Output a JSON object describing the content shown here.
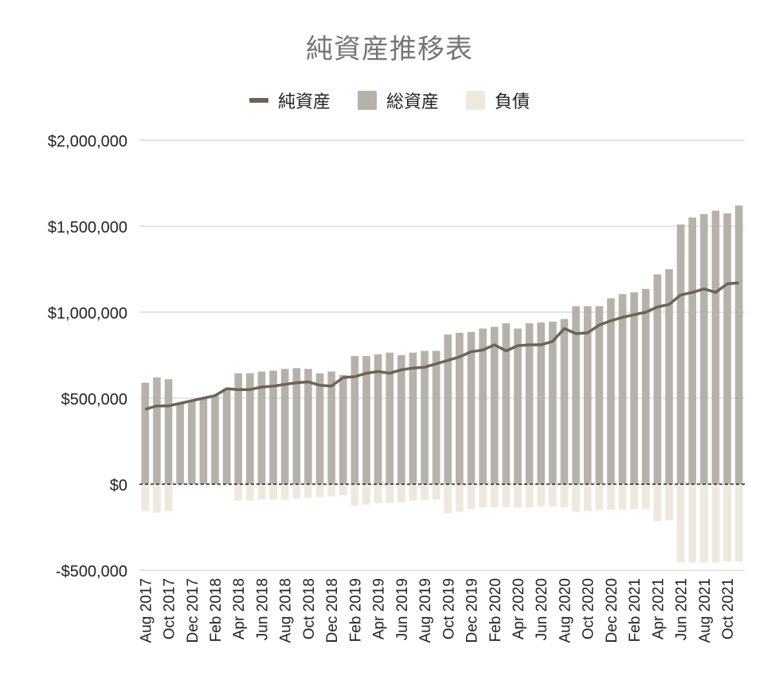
{
  "title": "純資産推移表",
  "legend": {
    "net": "純資産",
    "assets": "総資産",
    "liabilities": "負債"
  },
  "colors": {
    "net": "#6d6357",
    "assets": "#b6b2aa",
    "liabilities": "#efe8dc",
    "grid": "#cccccc",
    "zero": "#222222",
    "text": "#222222"
  },
  "chart_data": {
    "type": "bar",
    "title": "純資産推移表",
    "ylim": [
      -500000,
      2000000
    ],
    "yticks": [
      2000000,
      1500000,
      1000000,
      500000,
      0,
      -500000
    ],
    "ytick_labels": [
      "$2,000,000",
      "$1,500,000",
      "$1,000,000",
      "$500,000",
      "$0",
      "-$500,000"
    ],
    "grid": true,
    "legend_position": "top",
    "categories": [
      "Aug 2017",
      "Sep 2017",
      "Oct 2017",
      "Nov 2017",
      "Dec 2017",
      "Jan 2018",
      "Feb 2018",
      "Mar 2018",
      "Apr 2018",
      "May 2018",
      "Jun 2018",
      "Jul 2018",
      "Aug 2018",
      "Sep 2018",
      "Oct 2018",
      "Nov 2018",
      "Dec 2018",
      "Jan 2019",
      "Feb 2019",
      "Mar 2019",
      "Apr 2019",
      "May 2019",
      "Jun 2019",
      "Jul 2019",
      "Aug 2019",
      "Sep 2019",
      "Oct 2019",
      "Nov 2019",
      "Dec 2019",
      "Jan 2020",
      "Feb 2020",
      "Mar 2020",
      "Apr 2020",
      "May 2020",
      "Jun 2020",
      "Jul 2020",
      "Aug 2020",
      "Sep 2020",
      "Oct 2020",
      "Nov 2020",
      "Dec 2020",
      "Jan 2021",
      "Feb 2021",
      "Mar 2021",
      "Apr 2021",
      "May 2021",
      "Jun 2021",
      "Jul 2021",
      "Aug 2021",
      "Sep 2021",
      "Oct 2021",
      "Nov 2021"
    ],
    "x_tick_labels": [
      "Aug 2017",
      "",
      "Oct 2017",
      "",
      "Dec 2017",
      "",
      "Feb 2018",
      "",
      "Apr 2018",
      "",
      "Jun 2018",
      "",
      "Aug 2018",
      "",
      "Oct 2018",
      "",
      "Dec 2018",
      "",
      "Feb 2019",
      "",
      "Apr 2019",
      "",
      "Jun 2019",
      "",
      "Aug 2019",
      "",
      "Oct 2019",
      "",
      "Dec 2019",
      "",
      "Feb 2020",
      "",
      "Apr 2020",
      "",
      "Jun 2020",
      "",
      "Aug 2020",
      "",
      "Oct 2020",
      "",
      "Dec 2020",
      "",
      "Feb 2021",
      "",
      "Apr 2021",
      "",
      "Jun 2021",
      "",
      "Aug 2021",
      "",
      "Oct 2021",
      ""
    ],
    "series": [
      {
        "name": "純資産",
        "type": "line",
        "values": [
          435000,
          455000,
          455000,
          470000,
          485000,
          500000,
          515000,
          555000,
          550000,
          550000,
          565000,
          570000,
          580000,
          590000,
          595000,
          575000,
          570000,
          620000,
          625000,
          645000,
          655000,
          645000,
          665000,
          675000,
          680000,
          700000,
          720000,
          740000,
          770000,
          780000,
          810000,
          775000,
          805000,
          810000,
          810000,
          830000,
          905000,
          875000,
          880000,
          925000,
          950000,
          970000,
          985000,
          1000000,
          1030000,
          1045000,
          1100000,
          1115000,
          1135000,
          1115000,
          1165000,
          1170000
        ]
      },
      {
        "name": "総資産",
        "type": "bar",
        "values": [
          590000,
          620000,
          610000,
          470000,
          485000,
          500000,
          515000,
          555000,
          645000,
          645000,
          655000,
          660000,
          670000,
          675000,
          670000,
          645000,
          655000,
          635000,
          745000,
          745000,
          755000,
          765000,
          750000,
          765000,
          775000,
          775000,
          870000,
          880000,
          885000,
          905000,
          915000,
          935000,
          905000,
          935000,
          940000,
          945000,
          960000,
          1035000,
          1035000,
          1035000,
          1080000,
          1105000,
          1115000,
          1135000,
          1220000,
          1250000,
          1510000,
          1550000,
          1570000,
          1590000,
          1575000,
          1620000
        ]
      },
      {
        "name": "負債",
        "type": "bar",
        "values": [
          -155000,
          -165000,
          -155000,
          -2000,
          -2000,
          -2000,
          -2000,
          -2000,
          -95000,
          -95000,
          -90000,
          -90000,
          -90000,
          -85000,
          -80000,
          -75000,
          -70000,
          -65000,
          -125000,
          -120000,
          -110000,
          -110000,
          -105000,
          -95000,
          -95000,
          -90000,
          -170000,
          -160000,
          -145000,
          -135000,
          -135000,
          -135000,
          -135000,
          -135000,
          -130000,
          -130000,
          -135000,
          -160000,
          -155000,
          -150000,
          -150000,
          -150000,
          -145000,
          -145000,
          -215000,
          -210000,
          -455000,
          -455000,
          -455000,
          -455000,
          -450000,
          -450000
        ]
      }
    ]
  }
}
